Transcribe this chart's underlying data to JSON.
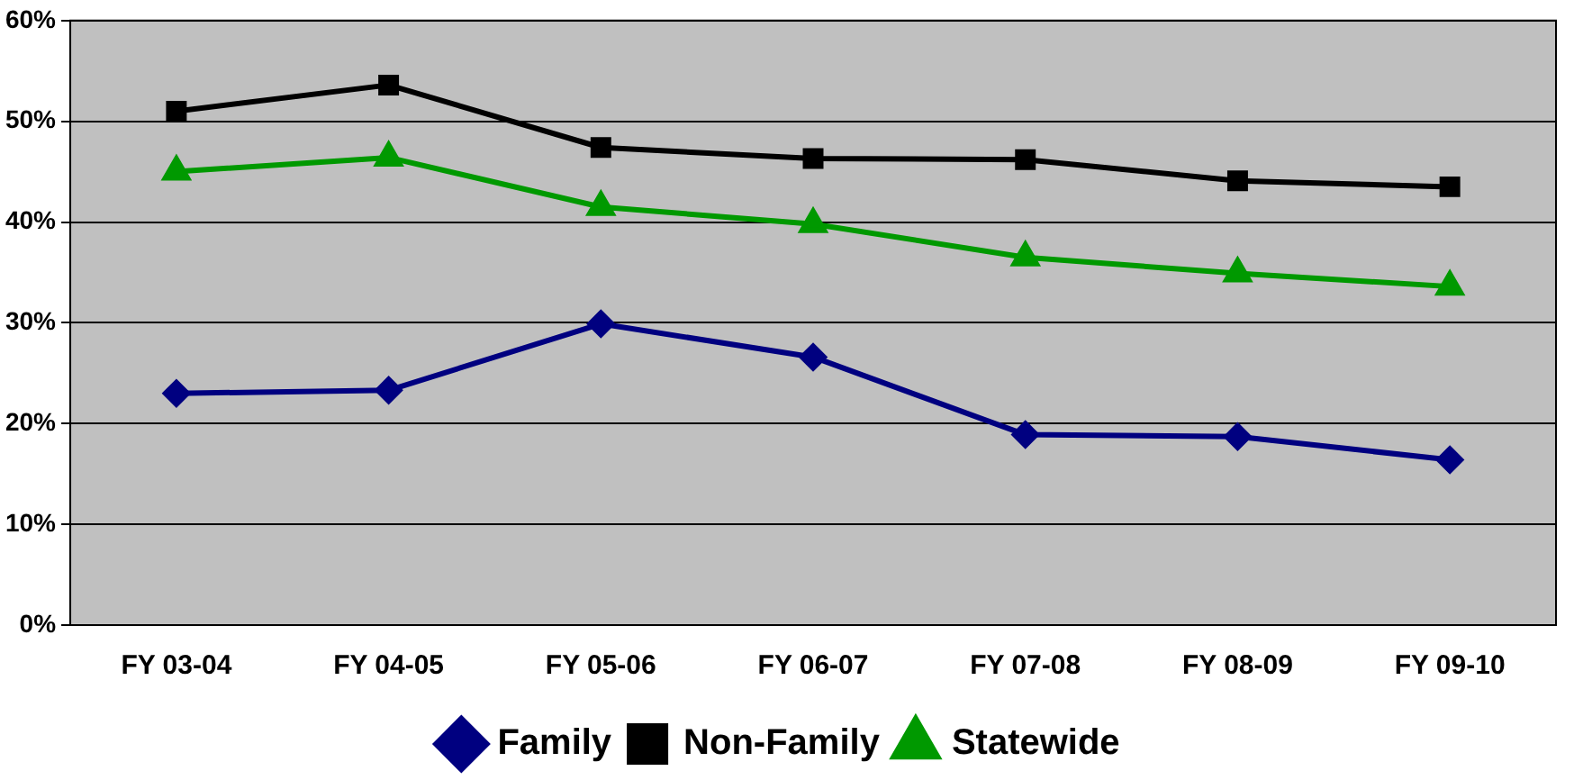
{
  "chart_data": {
    "type": "line",
    "categories": [
      "FY 03-04",
      "FY 04-05",
      "FY 05-06",
      "FY 06-07",
      "FY 07-08",
      "FY 08-09",
      "FY 09-10"
    ],
    "series": [
      {
        "name": "Family",
        "color": "#000080",
        "marker": "diamond",
        "values": [
          23,
          23.3,
          29.9,
          26.6,
          18.9,
          18.7,
          16.4
        ]
      },
      {
        "name": "Non-Family",
        "color": "#000000",
        "marker": "square",
        "values": [
          51,
          53.6,
          47.4,
          46.3,
          46.2,
          44.1,
          43.5
        ]
      },
      {
        "name": "Statewide",
        "color": "#009900",
        "marker": "triangle",
        "values": [
          45,
          46.4,
          41.5,
          39.8,
          36.5,
          34.9,
          33.6
        ]
      }
    ],
    "ylim": [
      0,
      60
    ],
    "yticks": [
      {
        "value": 0,
        "label": "0%"
      },
      {
        "value": 10,
        "label": "10%"
      },
      {
        "value": 20,
        "label": "20%"
      },
      {
        "value": 30,
        "label": "30%"
      },
      {
        "value": 40,
        "label": "40%"
      },
      {
        "value": 50,
        "label": "50%"
      },
      {
        "value": 60,
        "label": "60%"
      }
    ],
    "grid": "y",
    "legend": "bottom",
    "line_style": "solid"
  }
}
